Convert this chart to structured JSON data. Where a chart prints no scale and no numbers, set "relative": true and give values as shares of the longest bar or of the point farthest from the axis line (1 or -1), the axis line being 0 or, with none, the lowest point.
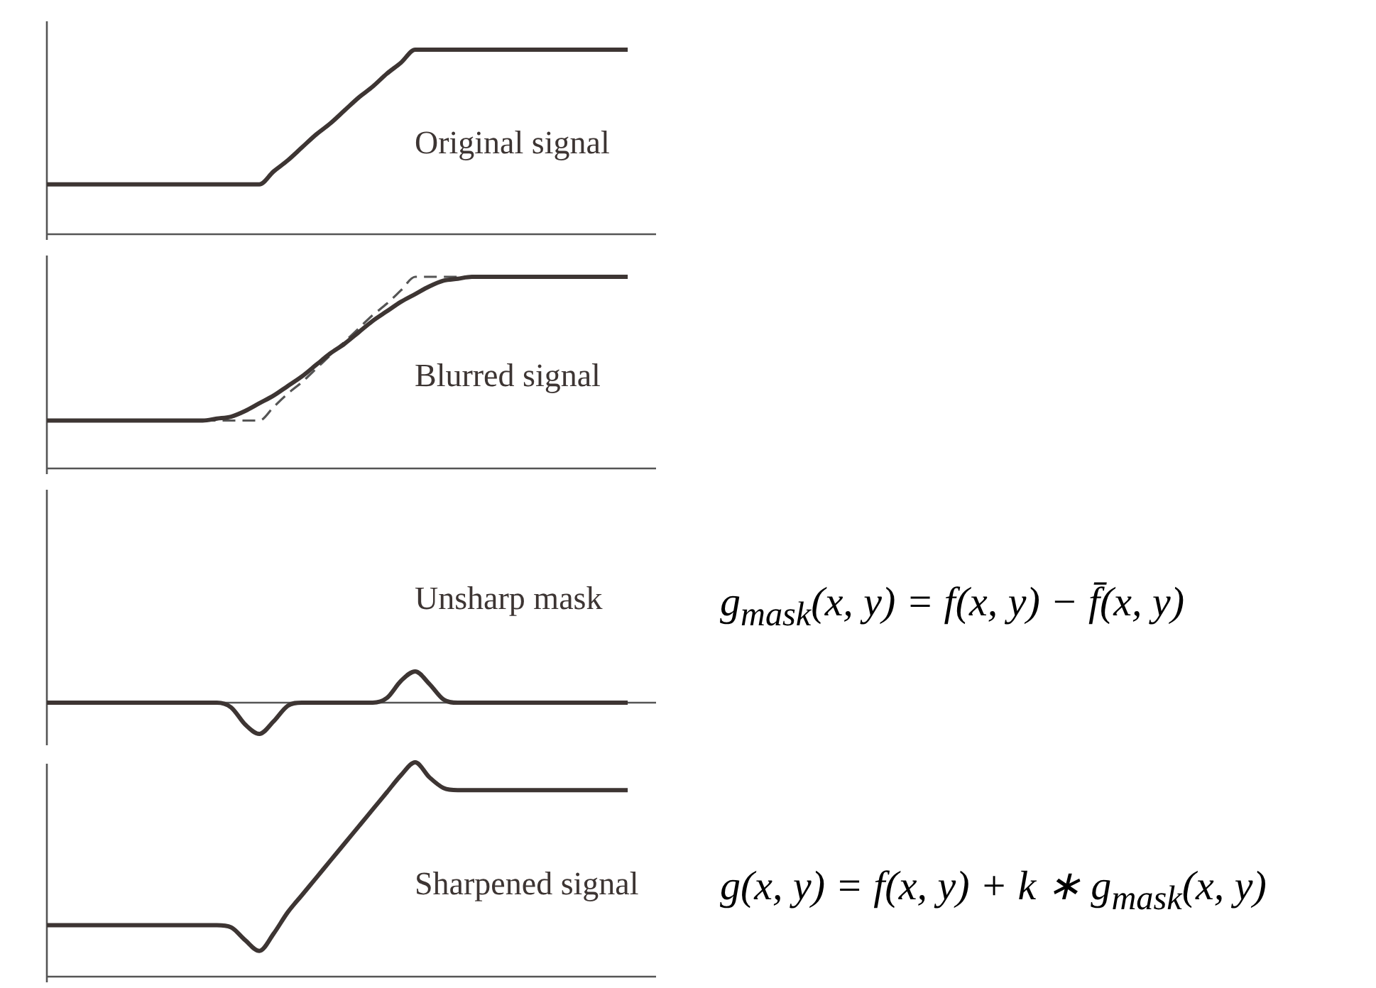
{
  "chart_data": [
    {
      "type": "line",
      "relative": true,
      "categories": [
        null,
        null,
        null,
        null,
        null,
        null,
        null,
        null,
        null,
        null,
        null,
        null,
        null,
        null,
        null,
        null,
        null,
        null,
        null,
        null,
        null,
        null,
        null,
        null,
        null,
        null,
        null,
        null,
        null,
        null,
        null,
        null,
        null,
        null,
        null,
        null,
        null,
        null,
        null,
        null,
        null,
        null,
        null,
        null
      ],
      "series": [
        {
          "color": "#3d3533",
          "line_style": "solid",
          "values": [
            0.27,
            0.27,
            0.27,
            0.27,
            0.27,
            0.27,
            0.27,
            0.27,
            0.27,
            0.27,
            0.27,
            0.27,
            0.27,
            0.27,
            0.27,
            0.27,
            0.34,
            0.4,
            0.47,
            0.54,
            0.6,
            0.67,
            0.74,
            0.8,
            0.87,
            0.93,
            1,
            1,
            1,
            1,
            1,
            1,
            1,
            1,
            1,
            1,
            1,
            1,
            1,
            1,
            1,
            1,
            null,
            null
          ]
        }
      ],
      "annotations": [
        "Original signal"
      ]
    },
    {
      "type": "line",
      "relative": true,
      "categories": [
        null,
        null,
        null,
        null,
        null,
        null,
        null,
        null,
        null,
        null,
        null,
        null,
        null,
        null,
        null,
        null,
        null,
        null,
        null,
        null,
        null,
        null,
        null,
        null,
        null,
        null,
        null,
        null,
        null,
        null,
        null,
        null,
        null,
        null,
        null,
        null,
        null,
        null,
        null,
        null,
        null,
        null,
        null,
        null
      ],
      "series": [
        {
          "color": "#3d3533",
          "line_style": "solid",
          "values": [
            0.25,
            0.25,
            0.25,
            0.25,
            0.25,
            0.25,
            0.25,
            0.25,
            0.25,
            0.25,
            0.25,
            0.25,
            0.26,
            0.27,
            0.3,
            0.34,
            0.38,
            0.43,
            0.48,
            0.54,
            0.6,
            0.65,
            0.71,
            0.77,
            0.82,
            0.87,
            0.91,
            0.95,
            0.98,
            0.99,
            1,
            1,
            1,
            1,
            1,
            1,
            1,
            1,
            1,
            1,
            1,
            1,
            null,
            null
          ]
        },
        {
          "color": "#555555",
          "line_style": "dashed",
          "values": [
            null,
            null,
            null,
            null,
            null,
            null,
            null,
            null,
            null,
            null,
            null,
            0.25,
            0.25,
            0.25,
            0.25,
            0.25,
            0.32,
            0.39,
            0.45,
            0.52,
            0.59,
            0.66,
            0.73,
            0.8,
            0.86,
            0.93,
            1,
            1,
            1,
            1,
            1,
            1,
            null,
            null,
            null,
            null,
            null,
            null,
            null,
            null,
            null,
            null,
            null,
            null
          ]
        }
      ],
      "annotations": [
        "Blurred signal"
      ]
    },
    {
      "type": "line",
      "relative": true,
      "categories": [
        null,
        null,
        null,
        null,
        null,
        null,
        null,
        null,
        null,
        null,
        null,
        null,
        null,
        null,
        null,
        null,
        null,
        null,
        null,
        null,
        null,
        null,
        null,
        null,
        null,
        null,
        null,
        null,
        null,
        null,
        null,
        null,
        null,
        null,
        null,
        null,
        null,
        null,
        null,
        null,
        null,
        null,
        null,
        null
      ],
      "series": [
        {
          "color": "#3d3533",
          "line_style": "solid",
          "values": [
            0,
            0,
            0,
            0,
            0,
            0,
            0,
            0,
            0,
            0,
            0,
            0,
            0,
            -0.15,
            -0.7,
            -1,
            -0.6,
            -0.1,
            0,
            0,
            0,
            0,
            0,
            0,
            0.15,
            0.7,
            1,
            0.6,
            0.1,
            0,
            0,
            0,
            0,
            0,
            0,
            0,
            0,
            0,
            0,
            0,
            0,
            0,
            null,
            null
          ]
        }
      ],
      "annotations": [
        "Unsharp mask",
        "g$_{mask}$(x, y) = f(x, y) − f̄(x, y)"
      ]
    },
    {
      "type": "line",
      "relative": true,
      "categories": [
        null,
        null,
        null,
        null,
        null,
        null,
        null,
        null,
        null,
        null,
        null,
        null,
        null,
        null,
        null,
        null,
        null,
        null,
        null,
        null,
        null,
        null,
        null,
        null,
        null,
        null,
        null,
        null,
        null,
        null,
        null,
        null,
        null,
        null,
        null,
        null,
        null,
        null,
        null,
        null,
        null,
        null,
        null,
        null
      ],
      "series": [
        {
          "color": "#3d3533",
          "line_style": "solid",
          "values": [
            0.24,
            0.24,
            0.24,
            0.24,
            0.24,
            0.24,
            0.24,
            0.24,
            0.24,
            0.24,
            0.24,
            0.24,
            0.24,
            0.23,
            0.17,
            0.12,
            0.2,
            0.3,
            0.38,
            0.46,
            0.54,
            0.62,
            0.7,
            0.78,
            0.86,
            0.94,
            1,
            0.93,
            0.88,
            0.87,
            0.87,
            0.87,
            0.87,
            0.87,
            0.87,
            0.87,
            0.87,
            0.87,
            0.87,
            0.87,
            0.87,
            0.87,
            null,
            null
          ]
        }
      ],
      "annotations": [
        "Sharpened signal",
        "g(x, y) = f(x, y) + k ∗ g$_{mask}$(x, y)"
      ]
    }
  ]
}
